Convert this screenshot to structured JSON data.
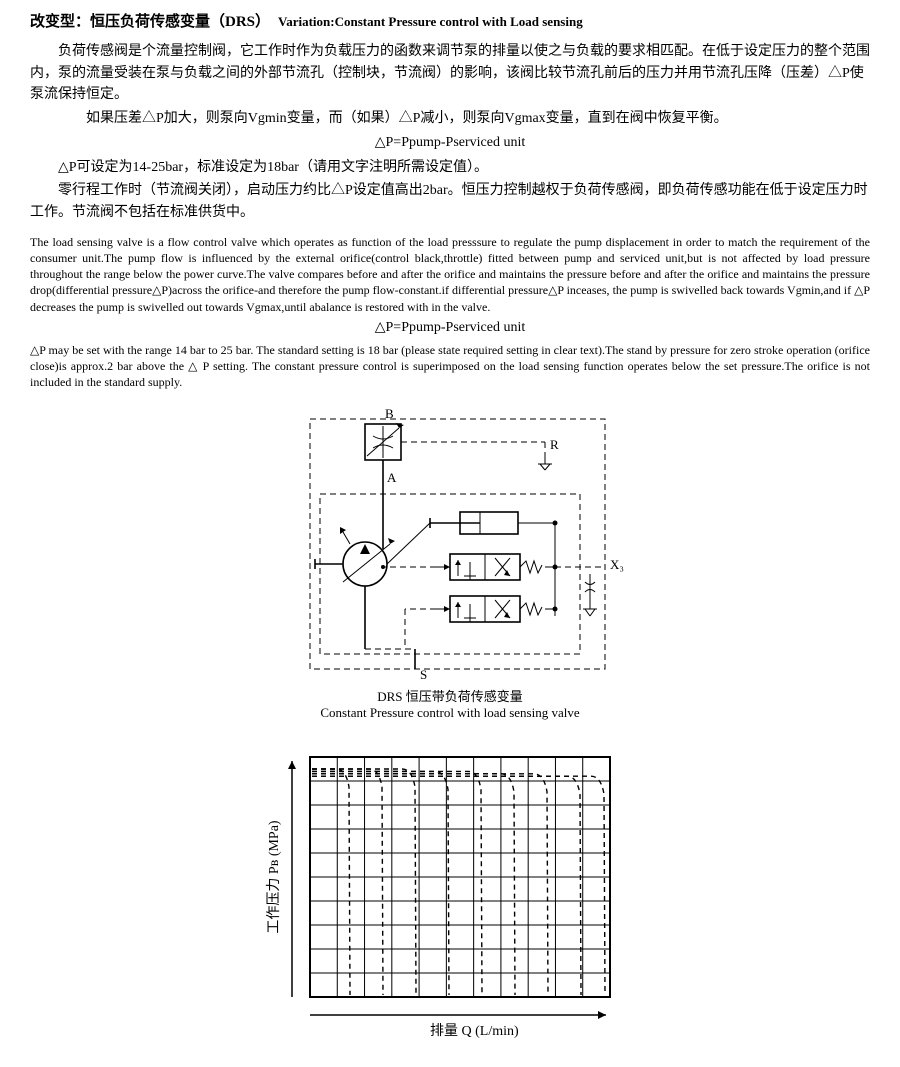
{
  "title": {
    "cn": "改变型：恒压负荷传感变量（DRS）",
    "en": "Variation:Constant Pressure control with Load sensing"
  },
  "cn_paragraphs": {
    "p1": "负荷传感阀是个流量控制阀，它工作时作为负载压力的函数来调节泵的排量以使之与负载的要求相匹配。在低于设定压力的整个范围内，泵的流量受装在泵与负载之间的外部节流孔（控制块，节流阀）的影响，该阀比较节流孔前后的压力并用节流孔压降（压差）△P使泵流保持恒定。",
    "p2": "如果压差△P加大，则泵向Vgmin变量，而（如果）△P减小，则泵向Vgmax变量，直到在阀中恢复平衡。",
    "eq": "△P=Ppump-Pserviced unit",
    "p3": "△P可设定为14-25bar，标准设定为18bar（请用文字注明所需设定值）。",
    "p4": "零行程工作时（节流阀关闭），启动压力约比△P设定值高出2bar。恒压力控制越权于负荷传感阀，即负荷传感功能在低于设定压力时工作。节流阀不包括在标准供货中。"
  },
  "en_paragraphs": {
    "p1": "The load sensing valve is a flow control valve which operates as function of the load presssure to regulate the pump displacement in order to match the requirement of the consumer unit.The pump flow is influenced by the external orifice(control black,throttle) fitted between pump and serviced unit,but is not affected by load pressure throughout the range below the power curve.The valve compares before and after the orifice and maintains the pressure before and after the orifice and maintains the pressure drop(differential pressure△P)across the orifice-and therefore the pump flow-constant.if differential pressure△P inceases, the pump is swivelled back towards Vgmin,and if △P decreases the pump is swivelled out towards Vgmax,until abalance is restored with in the valve.",
    "eq": "△P=Ppump-Pserviced unit",
    "p2": "△P may be set with the range 14 bar to 25 bar. The  standard setting is 18 bar (please state required setting in clear text).The stand by pressure for zero stroke operation (orifice close)is approx.2 bar above the △ P setting. The constant pressure control is superimposed on the load sensing function operates below the set pressure.The orifice is not included in the standard supply."
  },
  "schematic": {
    "caption_cn": "DRS 恒压带负荷传感变量",
    "caption_en": "Constant Pressure control with load sensing valve",
    "labels": {
      "B": "B",
      "A": "A",
      "R": "R",
      "S": "S",
      "X3": "X₃"
    },
    "stroke": "#000000",
    "dash": "6,4",
    "linewidth_main": 1.6,
    "linewidth_thin": 1
  },
  "chart": {
    "type": "line",
    "xlabel": "排量 Q (L/min)",
    "ylabel": "工作压力 Pв (MPa)",
    "stroke": "#000000",
    "background": "#ffffff",
    "linewidth_frame": 2,
    "linewidth_grid": 1,
    "linewidth_curve": 1.4,
    "dash": "5,4",
    "grid_x_count": 11,
    "grid_y_count": 10,
    "curves": [
      {
        "flat_y": 0.05,
        "drop_x": 0.12
      },
      {
        "flat_y": 0.05,
        "drop_x": 0.23
      },
      {
        "flat_y": 0.05,
        "drop_x": 0.34
      },
      {
        "flat_y": 0.06,
        "drop_x": 0.45
      },
      {
        "flat_y": 0.06,
        "drop_x": 0.56
      },
      {
        "flat_y": 0.07,
        "drop_x": 0.67
      },
      {
        "flat_y": 0.07,
        "drop_x": 0.78
      },
      {
        "flat_y": 0.08,
        "drop_x": 0.89
      },
      {
        "flat_y": 0.08,
        "drop_x": 0.97
      }
    ],
    "arrow_size": 8
  }
}
